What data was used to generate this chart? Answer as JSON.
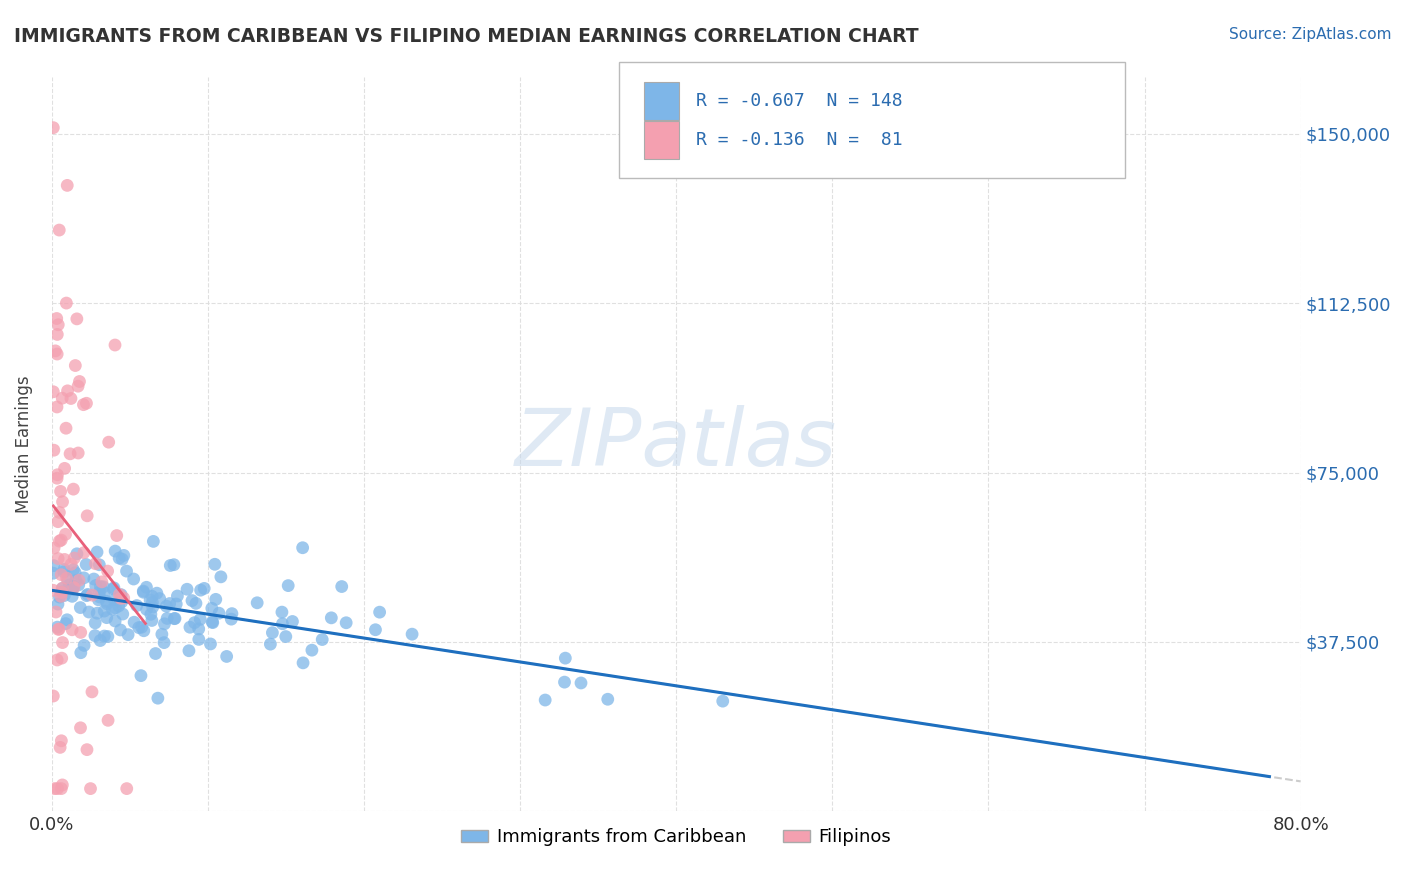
{
  "title": "IMMIGRANTS FROM CARIBBEAN VS FILIPINO MEDIAN EARNINGS CORRELATION CHART",
  "source": "Source: ZipAtlas.com",
  "ylabel": "Median Earnings",
  "xlim": [
    0.0,
    0.8
  ],
  "ylim": [
    0,
    162500
  ],
  "yticks": [
    0,
    37500,
    75000,
    112500,
    150000
  ],
  "ytick_labels": [
    "",
    "$37,500",
    "$75,000",
    "$112,500",
    "$150,000"
  ],
  "xticks": [
    0.0,
    0.1,
    0.2,
    0.3,
    0.4,
    0.5,
    0.6,
    0.7,
    0.8
  ],
  "xtick_labels": [
    "0.0%",
    "",
    "",
    "",
    "",
    "",
    "",
    "",
    "80.0%"
  ],
  "caribbean_R": -0.607,
  "caribbean_N": 148,
  "filipino_R": -0.136,
  "filipino_N": 81,
  "caribbean_color": "#7EB6E8",
  "filipino_color": "#F4A0B0",
  "caribbean_line_color": "#1E6FBF",
  "filipino_line_color": "#E8607A",
  "trendline_dashed_color": "#CCCCCC",
  "legend_text_color": "#2B6CB0",
  "background_color": "#FFFFFF",
  "grid_color": "#DDDDDD",
  "title_color": "#333333",
  "source_color": "#2B6CB0"
}
